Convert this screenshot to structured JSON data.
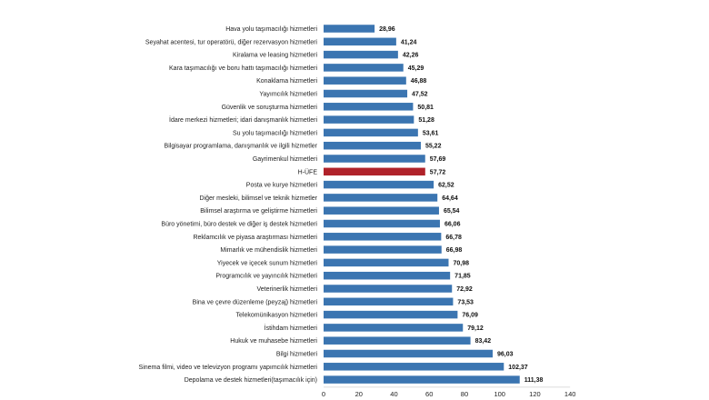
{
  "chart_data": {
    "type": "bar",
    "orientation": "horizontal",
    "title": "",
    "xlabel": "",
    "ylabel": "",
    "xlim": [
      0,
      140
    ],
    "xticks": [
      "0",
      "20",
      "40",
      "60",
      "80",
      "100",
      "120",
      "140"
    ],
    "grid": false,
    "colors": {
      "default": "#3b75b1",
      "highlight": "#b0222a"
    },
    "highlight_category": "H-ÜFE",
    "categories": [
      "Hava yolu taşımacılığı hizmetleri",
      "Seyahat acentesi, tur operatörü, diğer rezervasyon hizmetleri",
      "Kiralama ve leasing hizmetleri",
      "Kara taşımacılığı ve boru hattı taşımacılığı hizmetleri",
      "Konaklama hizmetleri",
      "Yayımcılık hizmetleri",
      "Güvenlik ve soruşturma hizmetleri",
      "İdare merkezi hizmetleri; idari danışmanlık hizmetleri",
      "Su yolu taşımacılığı hizmetleri",
      "Bilgisayar programlama, danışmanlık ve ilgili hizmetler",
      "Gayrimenkul hizmetleri",
      "H-ÜFE",
      "Posta ve kurye hizmetleri",
      "Diğer mesleki, bilimsel ve teknik hizmetler",
      "Bilimsel araştırma ve geliştirme hizmetleri",
      "Büro yönetimi, büro destek ve diğer iş destek hizmetleri",
      "Reklamcılık ve piyasa araştırması hizmetleri",
      "Mimarlık ve mühendislik hizmetleri",
      "Yiyecek ve içecek sunum hizmetleri",
      "Programcılık ve yayıncılık hizmetleri",
      "Veterinerlik hizmetleri",
      "Bina ve çevre düzenleme (peyzaj) hizmetleri",
      "Telekomünikasyon hizmetleri",
      "İstihdam hizmetleri",
      "Hukuk ve muhasebe hizmetleri",
      "Bilgi hizmetleri",
      "Sinema filmi, video ve televizyon programı yapımcılık hizmetleri",
      "Depolama ve destek hizmetleri(taşımacılık için)"
    ],
    "values": [
      28.96,
      41.24,
      42.26,
      45.29,
      46.88,
      47.52,
      50.81,
      51.28,
      53.61,
      55.22,
      57.69,
      57.72,
      62.52,
      64.64,
      65.54,
      66.06,
      66.78,
      66.98,
      70.98,
      71.85,
      72.92,
      73.53,
      76.09,
      79.12,
      83.42,
      96.03,
      102.37,
      111.38
    ],
    "value_labels": [
      "28,96",
      "41,24",
      "42,26",
      "45,29",
      "46,88",
      "47,52",
      "50,81",
      "51,28",
      "53,61",
      "55,22",
      "57,69",
      "57,72",
      "62,52",
      "64,64",
      "65,54",
      "66,06",
      "66,78",
      "66,98",
      "70,98",
      "71,85",
      "72,92",
      "73,53",
      "76,09",
      "79,12",
      "83,42",
      "96,03",
      "102,37",
      "111,38"
    ]
  }
}
